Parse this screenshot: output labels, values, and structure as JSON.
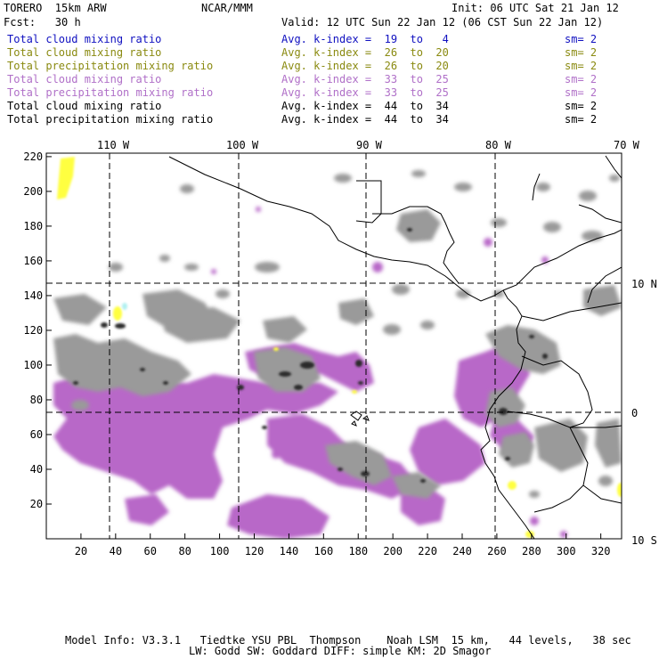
{
  "header": {
    "model_line": "TORERO  15km ARW",
    "org": "NCAR/MMM",
    "init": "Init: 06 UTC Sat 21 Jan 12",
    "fcst": "Fcst:   30 h",
    "valid": "Valid: 12 UTC Sun 22 Jan 12 (06 CST Sun 22 Jan 12)"
  },
  "legend": [
    {
      "field": "Total cloud mixing ratio",
      "kindex": "Avg. k-index =  19  to   4",
      "sm": "sm= 2",
      "color": "#1010c0"
    },
    {
      "field": "Total cloud mixing ratio",
      "kindex": "Avg. k-index =  26  to  20",
      "sm": "sm= 2",
      "color": "#8a8a10"
    },
    {
      "field": "Total precipitation mixing ratio",
      "kindex": "Avg. k-index =  26  to  20",
      "sm": "sm= 2",
      "color": "#8a8a10"
    },
    {
      "field": "Total cloud mixing ratio",
      "kindex": "Avg. k-index =  33  to  25",
      "sm": "sm= 2",
      "color": "#b070c8"
    },
    {
      "field": "Total precipitation mixing ratio",
      "kindex": "Avg. k-index =  33  to  25",
      "sm": "sm= 2",
      "color": "#b070c8"
    },
    {
      "field": "Total cloud mixing ratio",
      "kindex": "Avg. k-index =  44  to  34",
      "sm": "sm= 2",
      "color": "#000000"
    },
    {
      "field": "Total precipitation mixing ratio",
      "kindex": "Avg. k-index =  44  to  34",
      "sm": "sm= 2",
      "color": "#000000"
    }
  ],
  "axes": {
    "lon_labels": [
      "110 W",
      "100 W",
      "90 W",
      "80 W",
      "70 W"
    ],
    "lat_labels": [
      "10 N",
      "0",
      "10 S"
    ],
    "x_ticks": [
      "20",
      "40",
      "60",
      "80",
      "100",
      "120",
      "140",
      "160",
      "180",
      "200",
      "220",
      "240",
      "260",
      "280",
      "300",
      "320"
    ],
    "y_ticks": [
      "220",
      "200",
      "180",
      "160",
      "140",
      "120",
      "100",
      "80",
      "60",
      "40",
      "20"
    ]
  },
  "footer": {
    "line1": "Model Info: V3.3.1   Tiedtke YSU PBL  Thompson    Noah LSM  15 km,   44 levels,   38 sec",
    "line2": "LW: Godd SW: Goddard DIFF: simple KM: 2D Smagor"
  },
  "colors": {
    "purple_field": "#b868c8",
    "gray_field": "#9a9a9a",
    "dark_core": "#2a2a2a",
    "yellow_field": "#ffff40",
    "cyan_field": "#b0f0f0",
    "coastline": "#000000"
  }
}
